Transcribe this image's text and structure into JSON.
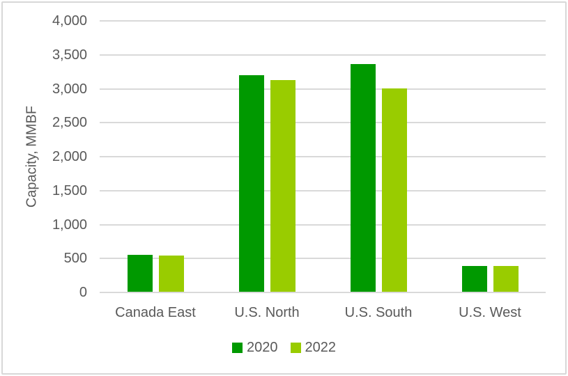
{
  "chart": {
    "frame_border_color": "#d8d8d8",
    "background_color": "#ffffff",
    "text_color": "#595959",
    "gridline_color": "#d9d9d9"
  },
  "chart_data": {
    "type": "bar",
    "title": "",
    "categories": [
      "Canada East",
      "U.S. North",
      "U.S. South",
      "U.S. West"
    ],
    "series": [
      {
        "name": "2020",
        "color": "#009900",
        "values": [
          545,
          3190,
          3350,
          380
        ]
      },
      {
        "name": "2022",
        "color": "#99cc00",
        "values": [
          530,
          3120,
          2990,
          375
        ]
      }
    ],
    "xlabel": "",
    "ylabel": "Capacity, MMBF",
    "ylim": [
      0,
      4000
    ],
    "ytick_step": 500,
    "ytick_labels": [
      "0",
      "500",
      "1,000",
      "1,500",
      "2,000",
      "2,500",
      "3,000",
      "3,500",
      "4,000"
    ],
    "grid": true,
    "legend_position": "bottom-center"
  }
}
